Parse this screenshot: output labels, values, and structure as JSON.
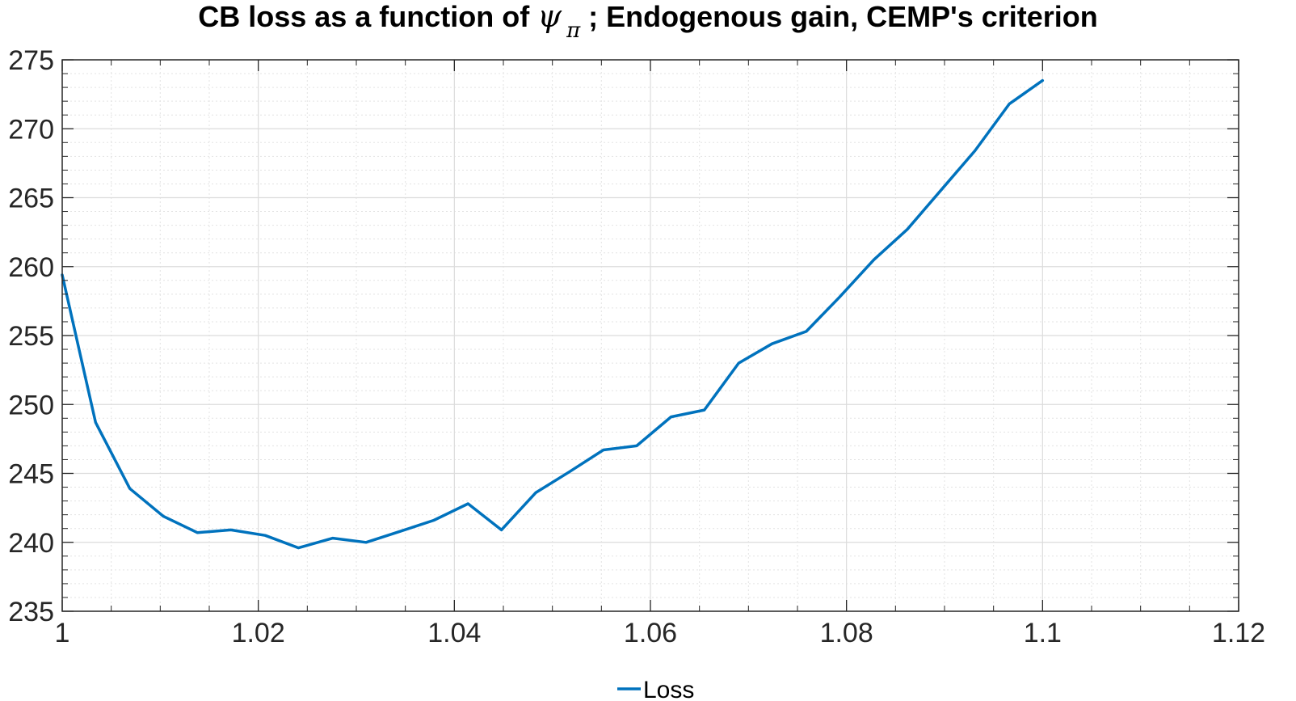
{
  "chart_data": {
    "type": "line",
    "title": {
      "prefix": "CB loss as a function of ",
      "symbol": "ψ",
      "subscript": "π",
      "suffix": " ; Endogenous gain, CEMP's criterion"
    },
    "xlabel": "",
    "ylabel": "",
    "xlim": [
      1,
      1.12
    ],
    "ylim": [
      235,
      275
    ],
    "x_ticks": [
      1,
      1.02,
      1.04,
      1.06,
      1.08,
      1.1,
      1.12
    ],
    "x_tick_labels": [
      "1",
      "1.02",
      "1.04",
      "1.06",
      "1.08",
      "1.1",
      "1.12"
    ],
    "y_ticks": [
      235,
      240,
      245,
      250,
      255,
      260,
      265,
      270,
      275
    ],
    "y_tick_labels": [
      "235",
      "240",
      "245",
      "250",
      "255",
      "260",
      "265",
      "270",
      "275"
    ],
    "grid": true,
    "minor_grid": true,
    "legend_position": "bottom",
    "series": [
      {
        "name": "Loss",
        "color": "#0072BD",
        "x": [
          1.0,
          1.0034,
          1.0069,
          1.0103,
          1.0138,
          1.0172,
          1.0207,
          1.0241,
          1.0276,
          1.031,
          1.0345,
          1.0379,
          1.0414,
          1.0448,
          1.0483,
          1.0517,
          1.0552,
          1.0586,
          1.0621,
          1.0655,
          1.069,
          1.0724,
          1.0759,
          1.0793,
          1.0828,
          1.0862,
          1.0897,
          1.0931,
          1.0966,
          1.1
        ],
        "y": [
          259.4,
          248.7,
          243.9,
          241.9,
          240.7,
          240.9,
          240.5,
          239.6,
          240.3,
          240.0,
          240.8,
          241.6,
          242.8,
          240.9,
          243.6,
          245.1,
          246.7,
          247.0,
          249.1,
          249.6,
          253.0,
          254.4,
          255.3,
          257.8,
          260.5,
          262.7,
          265.6,
          268.4,
          271.8,
          273.5
        ]
      }
    ]
  }
}
